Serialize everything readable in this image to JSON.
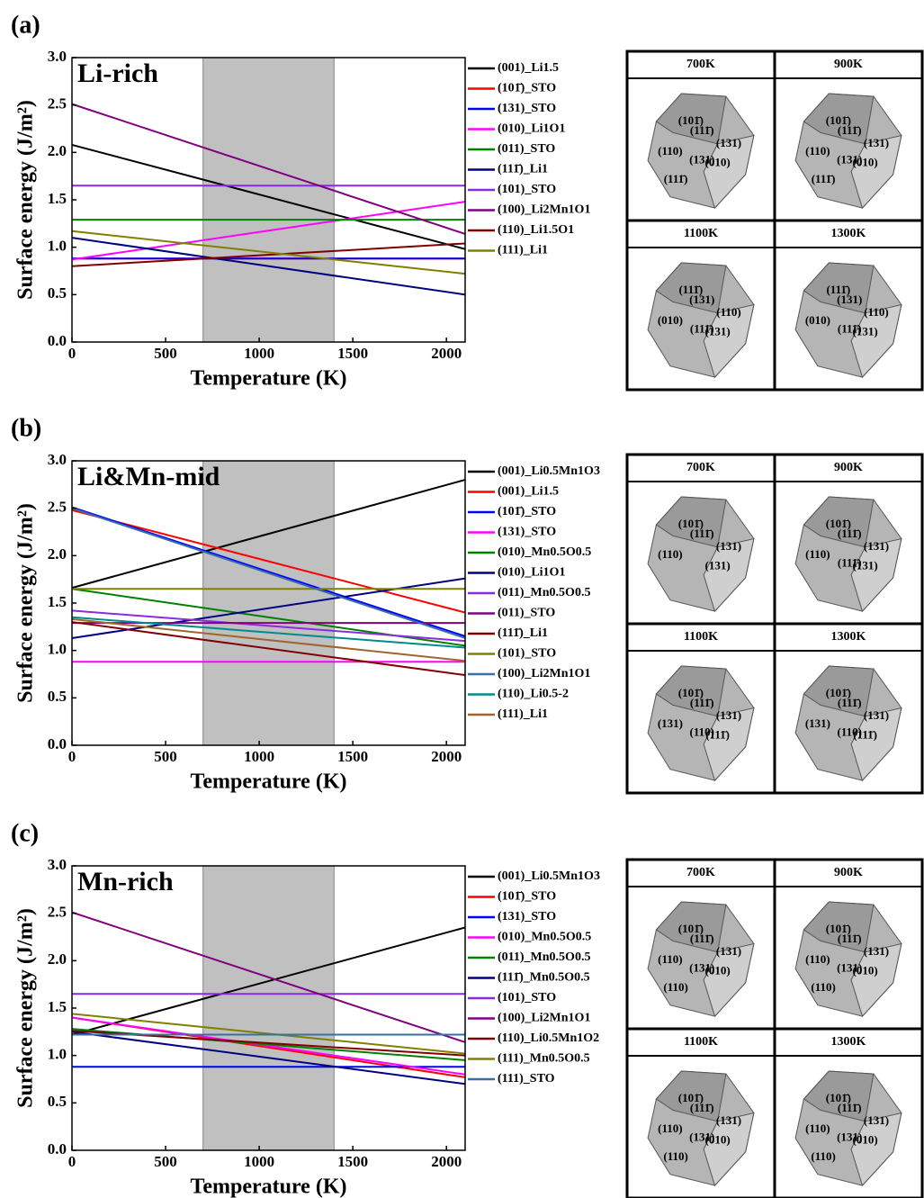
{
  "chart_data": [
    {
      "type": "line",
      "panel_label": "(a)",
      "annotation": "Li-rich",
      "x_label": "Temperature (K)",
      "y_label": "Surface energy (J/m²)",
      "x": [
        0,
        2100
      ],
      "xlim": [
        0,
        2100
      ],
      "ylim": [
        0,
        3
      ],
      "xticks": [
        0,
        500,
        1000,
        1500,
        2000
      ],
      "yticks": [
        {
          "value": 0,
          "label": "0.0"
        },
        0.5,
        {
          "value": 1,
          "label": "1.0"
        },
        1.5,
        {
          "value": 2,
          "label": "2.0"
        },
        2.5,
        {
          "value": 3,
          "label": "3.0"
        }
      ],
      "highlight": [
        700,
        1400
      ],
      "series": [
        {
          "name": "(001)_Li1.5",
          "color": "#000000",
          "values": [
            2.08,
            0.98
          ]
        },
        {
          "name": "(101̄)_STO",
          "color": "#ff0000",
          "values": [
            0.88,
            0.88
          ]
        },
        {
          "name": "(131)_STO",
          "color": "#0000ff",
          "values": [
            0.88,
            0.88
          ]
        },
        {
          "name": "(010)_Li1O1",
          "color": "#ff00ff",
          "values": [
            0.87,
            1.48
          ]
        },
        {
          "name": "(011)_STO",
          "color": "#008000",
          "values": [
            1.29,
            1.29
          ]
        },
        {
          "name": "(111̄)_Li1",
          "color": "#000080",
          "values": [
            1.1,
            0.5
          ]
        },
        {
          "name": "(101)_STO",
          "color": "#8a2be2",
          "values": [
            1.65,
            1.65
          ]
        },
        {
          "name": "(100)_Li2Mn1O1",
          "color": "#800080",
          "values": [
            2.51,
            1.14
          ]
        },
        {
          "name": "(110)_Li1.5O1",
          "color": "#800000",
          "values": [
            0.8,
            1.04
          ]
        },
        {
          "name": "(111)_Li1",
          "color": "#808000",
          "values": [
            1.17,
            0.72
          ]
        }
      ]
    },
    {
      "type": "line",
      "panel_label": "(b)",
      "annotation": "Li&Mn-mid",
      "x_label": "Temperature (K)",
      "y_label": "Surface energy (J/m²)",
      "x": [
        0,
        2100
      ],
      "xlim": [
        0,
        2100
      ],
      "ylim": [
        0,
        3
      ],
      "xticks": [
        0,
        500,
        1000,
        1500,
        2000
      ],
      "yticks": [
        {
          "value": 0,
          "label": "0.0"
        },
        0.5,
        {
          "value": 1,
          "label": "1.0"
        },
        1.5,
        {
          "value": 2,
          "label": "2.0"
        },
        2.5,
        {
          "value": 3,
          "label": "3.0"
        }
      ],
      "highlight": [
        700,
        1400
      ],
      "series": [
        {
          "name": "(001)_Li0.5Mn1O3",
          "color": "#000000",
          "values": [
            1.66,
            2.8
          ]
        },
        {
          "name": "(001)_Li1.5",
          "color": "#ff0000",
          "values": [
            2.48,
            1.4
          ]
        },
        {
          "name": "(101̄)_STO",
          "color": "#0000ff",
          "values": [
            2.51,
            1.15
          ]
        },
        {
          "name": "(131)_STO",
          "color": "#ff00ff",
          "values": [
            0.88,
            0.88
          ]
        },
        {
          "name": "(010)_Mn0.5O0.5",
          "color": "#008000",
          "values": [
            1.65,
            1.05
          ]
        },
        {
          "name": "(010)_Li1O1",
          "color": "#000080",
          "values": [
            1.13,
            1.76
          ]
        },
        {
          "name": "(011)_Mn0.5O0.5",
          "color": "#8a2be2",
          "values": [
            1.42,
            1.1
          ]
        },
        {
          "name": "(011)_STO",
          "color": "#800080",
          "values": [
            1.29,
            1.29
          ]
        },
        {
          "name": "(111̄)_Li1",
          "color": "#800000",
          "values": [
            1.3,
            0.74
          ]
        },
        {
          "name": "(101)_STO",
          "color": "#808000",
          "values": [
            1.65,
            1.65
          ]
        },
        {
          "name": "(100)_Li2Mn1O1",
          "color": "#3a6ea5",
          "values": [
            2.5,
            1.13
          ]
        },
        {
          "name": "(110)_Li0.5-2",
          "color": "#008b8b",
          "values": [
            1.35,
            1.03
          ]
        },
        {
          "name": "(111)_Li1",
          "color": "#a0642d",
          "values": [
            1.33,
            0.89
          ]
        }
      ]
    },
    {
      "type": "line",
      "panel_label": "(c)",
      "annotation": "Mn-rich",
      "x_label": "Temperature (K)",
      "y_label": "Surface energy (J/m²)",
      "x": [
        0,
        2100
      ],
      "xlim": [
        0,
        2100
      ],
      "ylim": [
        0,
        3
      ],
      "xticks": [
        0,
        500,
        1000,
        1500,
        2000
      ],
      "yticks": [
        {
          "value": 0,
          "label": "0.0"
        },
        0.5,
        {
          "value": 1,
          "label": "1.0"
        },
        1.5,
        {
          "value": 2,
          "label": "2.0"
        },
        2.5,
        {
          "value": 3,
          "label": "3.0"
        }
      ],
      "highlight": [
        700,
        1400
      ],
      "series": [
        {
          "name": "(001)_Li0.5Mn1O3",
          "color": "#000000",
          "values": [
            1.22,
            2.35
          ]
        },
        {
          "name": "(101̄)_STO",
          "color": "#ff0000",
          "values": [
            1.4,
            0.77
          ]
        },
        {
          "name": "(131)_STO",
          "color": "#0000ff",
          "values": [
            0.88,
            0.88
          ]
        },
        {
          "name": "(010)_Mn0.5O0.5",
          "color": "#ff00ff",
          "values": [
            1.4,
            0.8
          ]
        },
        {
          "name": "(011)_Mn0.5O0.5",
          "color": "#008000",
          "values": [
            1.28,
            0.95
          ]
        },
        {
          "name": "(111̄)_Mn0.5O0.5",
          "color": "#000080",
          "values": [
            1.25,
            0.7
          ]
        },
        {
          "name": "(101)_STO",
          "color": "#8a2be2",
          "values": [
            1.65,
            1.65
          ]
        },
        {
          "name": "(100)_Li2Mn1O1",
          "color": "#800080",
          "values": [
            2.51,
            1.14
          ]
        },
        {
          "name": "(110)_Li0.5Mn1O2",
          "color": "#800000",
          "values": [
            1.26,
            1.0
          ]
        },
        {
          "name": "(111)_Mn0.5O0.5",
          "color": "#808000",
          "values": [
            1.44,
            1.02
          ]
        },
        {
          "name": "(111)_STO",
          "color": "#3a6ea5",
          "values": [
            1.22,
            1.22
          ]
        }
      ]
    }
  ],
  "crystals": [
    [
      {
        "title": "700K",
        "facets": [
          "(101̄)",
          "(111̄)",
          "(131)",
          "(110)",
          "(010)",
          "(131)",
          "(111̄)"
        ]
      },
      {
        "title": "900K",
        "facets": [
          "(101̄)",
          "(111̄)",
          "(131)",
          "(110)",
          "(010)",
          "(131)",
          "(111̄)"
        ]
      },
      {
        "title": "1100K",
        "facets": [
          "(111̄)",
          "(131)",
          "(110)",
          "(010)",
          "(131)",
          "(111̄)"
        ]
      },
      {
        "title": "1300K",
        "facets": [
          "(111̄)",
          "(131)",
          "(110)",
          "(010)",
          "(131)",
          "(111̄)"
        ]
      }
    ],
    [
      {
        "title": "700K",
        "facets": [
          "(101̄)",
          "(111̄)",
          "(131)",
          "(110)",
          "(131)"
        ]
      },
      {
        "title": "900K",
        "facets": [
          "(101̄)",
          "(111̄)",
          "(131)",
          "(110)",
          "(131)",
          "(111̄)"
        ]
      },
      {
        "title": "1100K",
        "facets": [
          "(101̄)",
          "(111̄)",
          "(131)",
          "(131)",
          "(111̄)",
          "(110)"
        ]
      },
      {
        "title": "1300K",
        "facets": [
          "(101̄)",
          "(111̄)",
          "(131)",
          "(131)",
          "(111̄)",
          "(110)"
        ]
      }
    ],
    [
      {
        "title": "700K",
        "facets": [
          "(101̄)",
          "(111̄)",
          "(131)",
          "(110)",
          "(010)",
          "(131)",
          "(110)"
        ]
      },
      {
        "title": "900K",
        "facets": [
          "(101̄)",
          "(111̄)",
          "(131)",
          "(110)",
          "(010)",
          "(131)",
          "(110)"
        ]
      },
      {
        "title": "1100K",
        "facets": [
          "(101̄)",
          "(111̄)",
          "(131)",
          "(110)",
          "(010)",
          "(131)",
          "(110)"
        ]
      },
      {
        "title": "1300K",
        "facets": [
          "(101̄)",
          "(111̄)",
          "(131)",
          "(110)",
          "(010)",
          "(131)",
          "(110)"
        ]
      }
    ]
  ]
}
